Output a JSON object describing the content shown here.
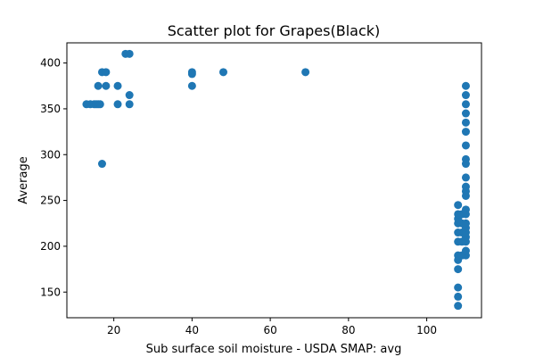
{
  "chart_data": {
    "type": "scatter",
    "title": "Scatter plot for Grapes(Black)",
    "xlabel": "Sub surface soil moisture - USDA SMAP: avg",
    "ylabel": "Average",
    "xlim": [
      8,
      114
    ],
    "ylim": [
      122,
      422
    ],
    "xticks": [
      20,
      40,
      60,
      80,
      100
    ],
    "yticks": [
      150,
      200,
      250,
      300,
      350,
      400
    ],
    "grid": false,
    "marker_color": "#1f77b4",
    "points": [
      {
        "x": 13,
        "y": 355
      },
      {
        "x": 14,
        "y": 355
      },
      {
        "x": 15,
        "y": 355
      },
      {
        "x": 15.5,
        "y": 355
      },
      {
        "x": 16,
        "y": 355
      },
      {
        "x": 16.5,
        "y": 355
      },
      {
        "x": 16,
        "y": 375
      },
      {
        "x": 18,
        "y": 375
      },
      {
        "x": 21,
        "y": 375
      },
      {
        "x": 17,
        "y": 390
      },
      {
        "x": 18,
        "y": 390
      },
      {
        "x": 23,
        "y": 410
      },
      {
        "x": 24,
        "y": 410
      },
      {
        "x": 17,
        "y": 290
      },
      {
        "x": 21,
        "y": 355
      },
      {
        "x": 24,
        "y": 355
      },
      {
        "x": 24,
        "y": 365
      },
      {
        "x": 40,
        "y": 390
      },
      {
        "x": 40,
        "y": 388
      },
      {
        "x": 40,
        "y": 375
      },
      {
        "x": 48,
        "y": 390
      },
      {
        "x": 69,
        "y": 390
      },
      {
        "x": 108,
        "y": 135
      },
      {
        "x": 108,
        "y": 145
      },
      {
        "x": 108,
        "y": 155
      },
      {
        "x": 108,
        "y": 175
      },
      {
        "x": 108,
        "y": 185
      },
      {
        "x": 108,
        "y": 190
      },
      {
        "x": 108,
        "y": 205
      },
      {
        "x": 108,
        "y": 215
      },
      {
        "x": 108,
        "y": 225
      },
      {
        "x": 108,
        "y": 230
      },
      {
        "x": 108,
        "y": 235
      },
      {
        "x": 108,
        "y": 245
      },
      {
        "x": 109,
        "y": 190
      },
      {
        "x": 109,
        "y": 205
      },
      {
        "x": 109,
        "y": 215
      },
      {
        "x": 109,
        "y": 225
      },
      {
        "x": 109,
        "y": 235
      },
      {
        "x": 110,
        "y": 190
      },
      {
        "x": 110,
        "y": 195
      },
      {
        "x": 110,
        "y": 205
      },
      {
        "x": 110,
        "y": 210
      },
      {
        "x": 110,
        "y": 215
      },
      {
        "x": 110,
        "y": 220
      },
      {
        "x": 110,
        "y": 225
      },
      {
        "x": 110,
        "y": 235
      },
      {
        "x": 110,
        "y": 240
      },
      {
        "x": 110,
        "y": 255
      },
      {
        "x": 110,
        "y": 260
      },
      {
        "x": 110,
        "y": 265
      },
      {
        "x": 110,
        "y": 275
      },
      {
        "x": 110,
        "y": 290
      },
      {
        "x": 110,
        "y": 295
      },
      {
        "x": 110,
        "y": 310
      },
      {
        "x": 110,
        "y": 325
      },
      {
        "x": 110,
        "y": 335
      },
      {
        "x": 110,
        "y": 345
      },
      {
        "x": 110,
        "y": 355
      },
      {
        "x": 110,
        "y": 365
      },
      {
        "x": 110,
        "y": 375
      }
    ]
  }
}
